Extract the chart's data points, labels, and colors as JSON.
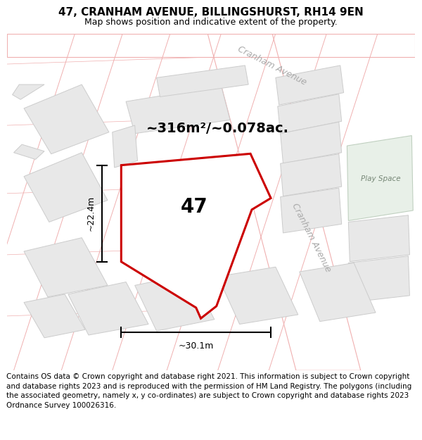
{
  "title": "47, CRANHAM AVENUE, BILLINGSHURST, RH14 9EN",
  "subtitle": "Map shows position and indicative extent of the property.",
  "footer": "Contains OS data © Crown copyright and database right 2021. This information is subject to Crown copyright and database rights 2023 and is reproduced with the permission of HM Land Registry. The polygons (including the associated geometry, namely x, y co-ordinates) are subject to Crown copyright and database rights 2023 Ordnance Survey 100026316.",
  "bg_color": "#ffffff",
  "map_bg": "#f8f8f8",
  "road_outline_color": "#f0b0b0",
  "block_fill": "#e8e8e8",
  "block_border": "#cccccc",
  "highlight_color": "#cc0000",
  "area_text": "~316m²/~0.078ac.",
  "number_text": "47",
  "dim_width": "~30.1m",
  "dim_height": "~22.4m",
  "street_name_top": "Cranham Avenue",
  "street_name_right": "Cranham Avenue",
  "play_space_text": "Play Space",
  "play_space_fill": "#e8f0e8",
  "play_space_border": "#c0d0c0",
  "title_fontsize": 11,
  "subtitle_fontsize": 9,
  "area_fontsize": 14,
  "number_fontsize": 20,
  "dim_fontsize": 9,
  "footer_fontsize": 7.5,
  "street_fontsize": 9
}
